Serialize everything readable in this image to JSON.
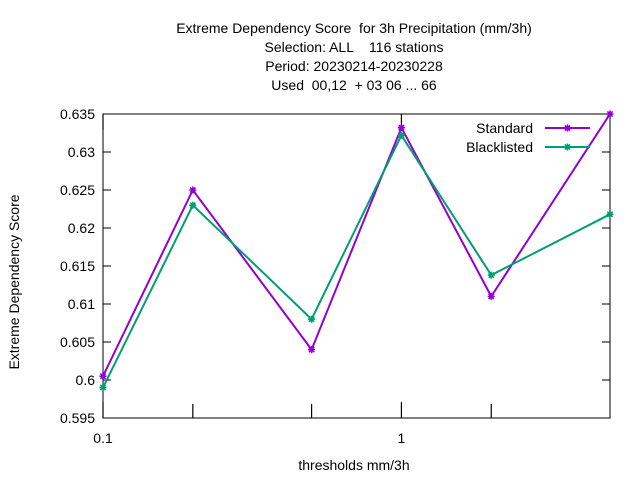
{
  "chart_data": {
    "type": "line",
    "title_lines": [
      "Extreme Dependency Score  for 3h Precipitation (mm/3h)",
      "Selection: ALL    116 stations",
      "Period: 20230214-20230228",
      "Used  00,12  + 03 06 ... 66"
    ],
    "xlabel": "thresholds mm/3h",
    "ylabel": "Extreme Dependency Score",
    "x_scale": "log",
    "xlim": [
      0.1,
      5
    ],
    "ylim": [
      0.595,
      0.635
    ],
    "x_ticks": [
      {
        "value": 0.1,
        "label": "0.1"
      },
      {
        "value": 1,
        "label": "1"
      }
    ],
    "x_minor_ticks": [
      0.2,
      0.5,
      2
    ],
    "y_ticks": [
      {
        "value": 0.595,
        "label": "0.595"
      },
      {
        "value": 0.6,
        "label": "0.6"
      },
      {
        "value": 0.605,
        "label": "0.605"
      },
      {
        "value": 0.61,
        "label": "0.61"
      },
      {
        "value": 0.615,
        "label": "0.615"
      },
      {
        "value": 0.62,
        "label": "0.62"
      },
      {
        "value": 0.625,
        "label": "0.625"
      },
      {
        "value": 0.63,
        "label": "0.63"
      },
      {
        "value": 0.635,
        "label": "0.635"
      }
    ],
    "x": [
      0.1,
      0.2,
      0.5,
      1,
      2,
      5
    ],
    "series": [
      {
        "name": "Standard",
        "color": "#9400d3",
        "values": [
          0.6005,
          0.625,
          0.604,
          0.6332,
          0.611,
          0.635
        ]
      },
      {
        "name": "Blacklisted",
        "color": "#009e73",
        "values": [
          0.599,
          0.623,
          0.608,
          0.6322,
          0.6138,
          0.6218
        ]
      }
    ],
    "legend": "top-right",
    "grid": false
  }
}
